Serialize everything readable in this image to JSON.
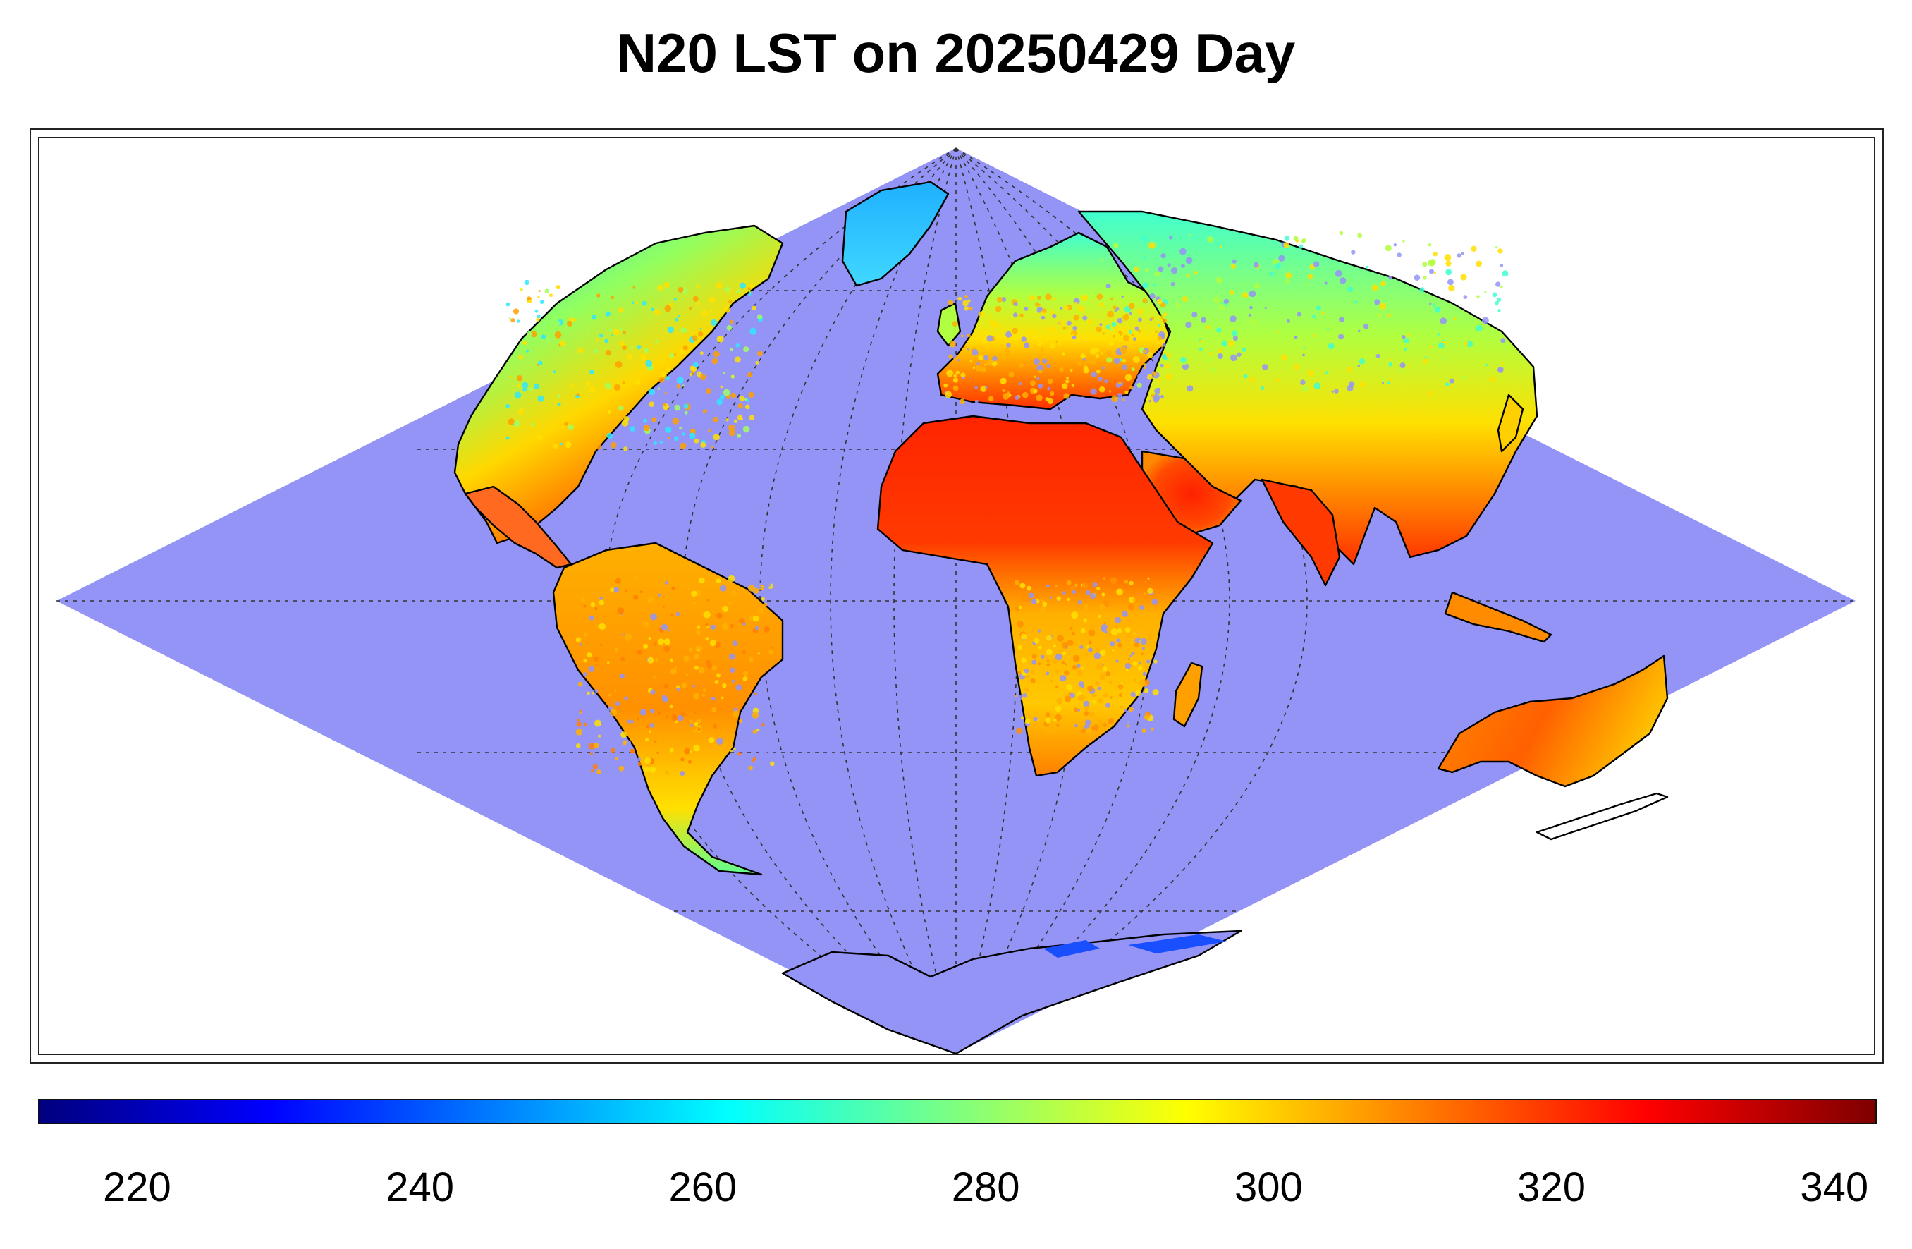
{
  "title": "N20 LST on 20250429 Day",
  "colormap": "jet",
  "ocean_color": "#9494f7",
  "colorbar": {
    "min": 213,
    "max": 343,
    "ticks": [
      "220",
      "240",
      "260",
      "280",
      "300",
      "320",
      "340"
    ]
  },
  "projection": "sinusoidal",
  "graticule": "dotted"
}
